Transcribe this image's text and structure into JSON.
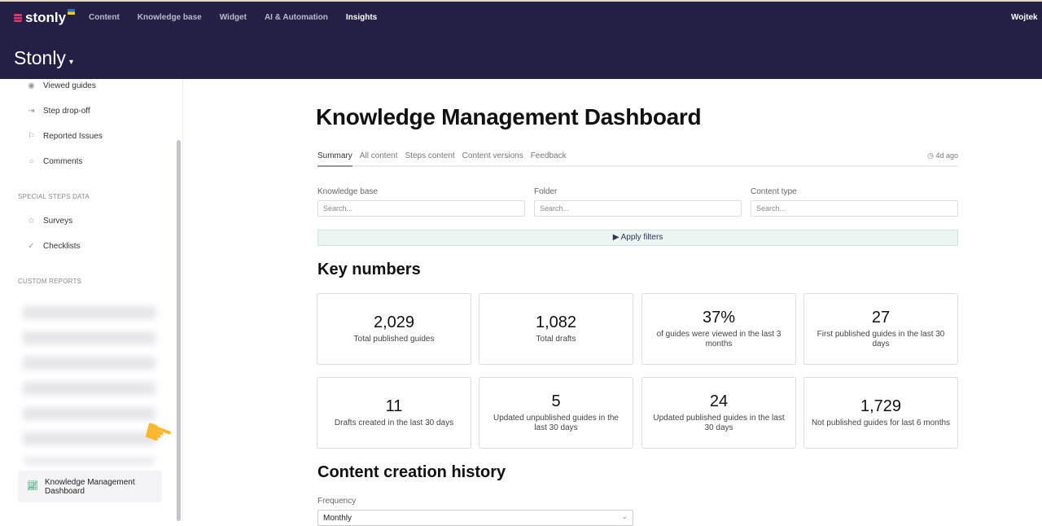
{
  "header": {
    "logo": "stonly",
    "nav": [
      "Content",
      "Knowledge base",
      "Widget",
      "AI & Automation",
      "Insights"
    ],
    "active_nav": "Insights",
    "user": "Wojtek",
    "workspace": "Stonly"
  },
  "sidebar": {
    "items": [
      {
        "label": "Viewed guides",
        "icon": "eye-icon"
      },
      {
        "label": "Step drop-off",
        "icon": "exit-icon"
      },
      {
        "label": "Reported Issues",
        "icon": "flag-icon"
      },
      {
        "label": "Comments",
        "icon": "comment-icon"
      }
    ],
    "special_title": "SPECIAL STEPS DATA",
    "special_items": [
      {
        "label": "Surveys",
        "icon": "star-icon"
      },
      {
        "label": "Checklists",
        "icon": "check-circle-icon"
      }
    ],
    "custom_title": "CUSTOM REPORTS",
    "active_report": "Knowledge Management Dashboard"
  },
  "main": {
    "title": "Knowledge Management Dashboard",
    "tabs": [
      "Summary",
      "All content",
      "Steps content",
      "Content versions",
      "Feedback"
    ],
    "active_tab": "Summary",
    "updated": "4d ago",
    "filters": [
      {
        "label": "Knowledge base",
        "placeholder": "Search..."
      },
      {
        "label": "Folder",
        "placeholder": "Search..."
      },
      {
        "label": "Content type",
        "placeholder": "Search..."
      }
    ],
    "apply": "Apply filters",
    "key_numbers_title": "Key numbers",
    "cards": [
      {
        "value": "2,029",
        "label": "Total published guides"
      },
      {
        "value": "1,082",
        "label": "Total drafts"
      },
      {
        "value": "37%",
        "label": "of guides were viewed in the last 3 months"
      },
      {
        "value": "27",
        "label": "First published guides in the last 30 days"
      },
      {
        "value": "11",
        "label": "Drafts created in the last 30 days"
      },
      {
        "value": "5",
        "label": "Updated unpublished guides in the last 30 days"
      },
      {
        "value": "24",
        "label": "Updated published guides in the last 30 days"
      },
      {
        "value": "1,729",
        "label": "Not published guides for last 6 months"
      }
    ],
    "history_title": "Content creation history",
    "frequency_label": "Frequency",
    "frequency_value": "Monthly"
  },
  "colors": {
    "header_bg": "#241f45",
    "accent_green": "#2f9e6b",
    "logo_pink": "#e8336d"
  }
}
